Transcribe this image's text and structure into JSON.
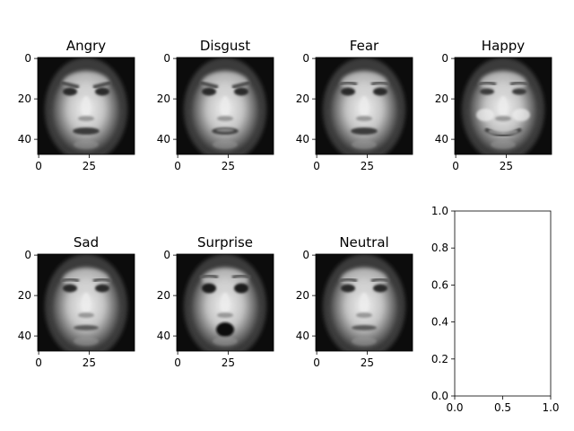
{
  "figure": {
    "background": "#ffffff",
    "face_colormap": "gray"
  },
  "chart_data": [
    {
      "type": "heatmap",
      "title": "Angry",
      "image_size": 48,
      "xticks": [
        0,
        25
      ],
      "yticks": [
        0,
        20,
        40
      ],
      "expression": "angry"
    },
    {
      "type": "heatmap",
      "title": "Disgust",
      "image_size": 48,
      "xticks": [
        0,
        25
      ],
      "yticks": [
        0,
        20,
        40
      ],
      "expression": "disgust"
    },
    {
      "type": "heatmap",
      "title": "Fear",
      "image_size": 48,
      "xticks": [
        0,
        25
      ],
      "yticks": [
        0,
        20,
        40
      ],
      "expression": "fear"
    },
    {
      "type": "heatmap",
      "title": "Happy",
      "image_size": 48,
      "xticks": [
        0,
        25
      ],
      "yticks": [
        0,
        20,
        40
      ],
      "expression": "happy"
    },
    {
      "type": "heatmap",
      "title": "Sad",
      "image_size": 48,
      "xticks": [
        0,
        25
      ],
      "yticks": [
        0,
        20,
        40
      ],
      "expression": "sad"
    },
    {
      "type": "heatmap",
      "title": "Surprise",
      "image_size": 48,
      "xticks": [
        0,
        25
      ],
      "yticks": [
        0,
        20,
        40
      ],
      "expression": "surprise"
    },
    {
      "type": "heatmap",
      "title": "Neutral",
      "image_size": 48,
      "xticks": [
        0,
        25
      ],
      "yticks": [
        0,
        20,
        40
      ],
      "expression": "neutral"
    },
    {
      "type": "line",
      "title": "",
      "series": [],
      "xlim": [
        0.0,
        1.0
      ],
      "ylim": [
        0.0,
        1.0
      ],
      "xticks": [
        "0.0",
        "0.5",
        "1.0"
      ],
      "yticks": [
        "0.0",
        "0.2",
        "0.4",
        "0.6",
        "0.8",
        "1.0"
      ],
      "grid": false
    }
  ]
}
